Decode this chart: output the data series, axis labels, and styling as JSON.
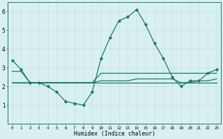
{
  "xlabel": "Humidex (Indice chaleur)",
  "x": [
    0,
    1,
    2,
    3,
    4,
    5,
    6,
    7,
    8,
    9,
    10,
    11,
    12,
    13,
    14,
    15,
    16,
    17,
    18,
    19,
    20,
    21,
    22,
    23
  ],
  "line1": [
    3.4,
    2.9,
    2.2,
    2.2,
    2.0,
    1.7,
    1.2,
    1.1,
    1.0,
    1.7,
    3.5,
    4.6,
    5.5,
    5.7,
    6.1,
    5.3,
    4.3,
    3.5,
    2.5,
    2.0,
    2.3,
    2.3,
    2.7,
    2.9
  ],
  "line2": [
    2.8,
    2.8,
    2.2,
    2.2,
    2.2,
    2.2,
    2.2,
    2.2,
    2.2,
    2.2,
    2.7,
    2.7,
    2.7,
    2.7,
    2.7,
    2.7,
    2.7,
    2.7,
    2.7,
    2.7,
    2.7,
    2.7,
    2.7,
    2.7
  ],
  "line3": [
    2.2,
    2.2,
    2.2,
    2.2,
    2.2,
    2.2,
    2.2,
    2.2,
    2.2,
    2.2,
    2.3,
    2.3,
    2.3,
    2.3,
    2.4,
    2.4,
    2.4,
    2.4,
    2.4,
    2.2,
    2.2,
    2.3,
    2.3,
    2.4
  ],
  "line4": [
    2.2,
    2.2,
    2.2,
    2.2,
    2.2,
    2.2,
    2.2,
    2.2,
    2.2,
    2.2,
    2.2,
    2.2,
    2.2,
    2.2,
    2.2,
    2.2,
    2.2,
    2.2,
    2.2,
    2.2,
    2.2,
    2.2,
    2.2,
    2.2
  ],
  "line_color": "#1a7a6e",
  "bg_color": "#d8f0f0",
  "grid_color": "#c8dede",
  "ylim": [
    0,
    6.5
  ],
  "yticks": [
    1,
    2,
    3,
    4,
    5,
    6
  ],
  "xlim": [
    -0.5,
    23.5
  ],
  "marker": "D",
  "marker_size": 1.8,
  "linewidth": 0.9
}
